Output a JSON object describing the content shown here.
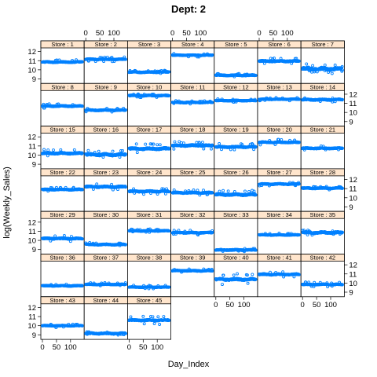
{
  "chart_data": {
    "type": "scatter",
    "title": "Dept: 2",
    "xlabel": "Day_Index",
    "ylabel": "log(Weekly_Sales)",
    "panel_label_prefix": "Store : ",
    "xlim": [
      0,
      143
    ],
    "ylim": [
      8.5,
      12.4
    ],
    "x_ticks": [
      0,
      50,
      100
    ],
    "y_ticks": [
      9,
      10,
      11,
      12
    ],
    "point_color": "#0080ff",
    "strip_color": "#ffe5cc",
    "layout": {
      "columns": 7,
      "rows": 7
    },
    "series": [
      {
        "store": 1,
        "label": "Store : 1",
        "level": 10.85,
        "amp": 0.08,
        "spike": 0.2
      },
      {
        "store": 2,
        "label": "Store : 2",
        "level": 11.15,
        "amp": 0.08,
        "spike": 0.2
      },
      {
        "store": 3,
        "label": "Store : 3",
        "level": 9.75,
        "amp": 0.08,
        "spike": 0.15
      },
      {
        "store": 4,
        "label": "Store : 4",
        "level": 11.6,
        "amp": 0.06,
        "spike": 0.15
      },
      {
        "store": 5,
        "label": "Store : 5",
        "level": 9.4,
        "amp": 0.08,
        "spike": 0.15
      },
      {
        "store": 6,
        "label": "Store : 6",
        "level": 10.95,
        "amp": 0.1,
        "spike": 0.3
      },
      {
        "store": 7,
        "label": "Store : 7",
        "level": 10.1,
        "amp": 0.25,
        "spike": 0.35
      },
      {
        "store": 8,
        "label": "Store : 8",
        "level": 10.7,
        "amp": 0.08,
        "spike": 0.2
      },
      {
        "store": 9,
        "label": "Store : 9",
        "level": 10.25,
        "amp": 0.08,
        "spike": 0.15
      },
      {
        "store": 10,
        "label": "Store : 10",
        "level": 11.85,
        "amp": 0.08,
        "spike": 0.15
      },
      {
        "store": 11,
        "label": "Store : 11",
        "level": 11.1,
        "amp": 0.08,
        "spike": 0.15
      },
      {
        "store": 12,
        "label": "Store : 12",
        "level": 11.3,
        "amp": 0.06,
        "spike": 0.15
      },
      {
        "store": 13,
        "label": "Store : 13",
        "level": 11.45,
        "amp": 0.06,
        "spike": 0.15
      },
      {
        "store": 14,
        "label": "Store : 14",
        "level": 11.4,
        "amp": 0.1,
        "spike": 0.2
      },
      {
        "store": 15,
        "label": "Store : 15",
        "level": 10.2,
        "amp": 0.12,
        "spike": 0.35
      },
      {
        "store": 16,
        "label": "Store : 16",
        "level": 10.05,
        "amp": 0.18,
        "spike": 0.35
      },
      {
        "store": 17,
        "label": "Store : 17",
        "level": 10.7,
        "amp": 0.15,
        "spike": 0.45
      },
      {
        "store": 18,
        "label": "Store : 18",
        "level": 11.05,
        "amp": 0.12,
        "spike": 0.35
      },
      {
        "store": 19,
        "label": "Store : 19",
        "level": 10.9,
        "amp": 0.1,
        "spike": 0.3
      },
      {
        "store": 20,
        "label": "Store : 20",
        "level": 11.4,
        "amp": 0.08,
        "spike": 0.25
      },
      {
        "store": 21,
        "label": "Store : 21",
        "level": 10.75,
        "amp": 0.08,
        "spike": 0.2
      },
      {
        "store": 22,
        "label": "Store : 22",
        "level": 10.9,
        "amp": 0.08,
        "spike": 0.2
      },
      {
        "store": 23,
        "label": "Store : 23",
        "level": 11.2,
        "amp": 0.12,
        "spike": 0.3
      },
      {
        "store": 24,
        "label": "Store : 24",
        "level": 10.7,
        "amp": 0.1,
        "spike": 0.25
      },
      {
        "store": 25,
        "label": "Store : 25",
        "level": 10.55,
        "amp": 0.1,
        "spike": 0.25
      },
      {
        "store": 26,
        "label": "Store : 26",
        "level": 10.35,
        "amp": 0.15,
        "spike": 0.35
      },
      {
        "store": 27,
        "label": "Store : 27",
        "level": 11.5,
        "amp": 0.08,
        "spike": 0.15
      },
      {
        "store": 28,
        "label": "Store : 28",
        "level": 11.05,
        "amp": 0.08,
        "spike": 0.15
      },
      {
        "store": 29,
        "label": "Store : 29",
        "level": 10.2,
        "amp": 0.1,
        "spike": 0.3
      },
      {
        "store": 30,
        "label": "Store : 30",
        "level": 9.55,
        "amp": 0.08,
        "spike": 0.15
      },
      {
        "store": 31,
        "label": "Store : 31",
        "level": 11.05,
        "amp": 0.06,
        "spike": 0.15
      },
      {
        "store": 32,
        "label": "Store : 32",
        "level": 10.85,
        "amp": 0.08,
        "spike": 0.2
      },
      {
        "store": 33,
        "label": "Store : 33",
        "level": 8.95,
        "amp": 0.08,
        "spike": 0.15
      },
      {
        "store": 34,
        "label": "Store : 34",
        "level": 10.6,
        "amp": 0.06,
        "spike": 0.15
      },
      {
        "store": 35,
        "label": "Store : 35",
        "level": 10.85,
        "amp": 0.15,
        "spike": 0.2
      },
      {
        "store": 36,
        "label": "Store : 36",
        "level": 9.7,
        "amp": 0.06,
        "spike": 0.15
      },
      {
        "store": 37,
        "label": "Store : 37",
        "level": 9.85,
        "amp": 0.06,
        "spike": 0.15
      },
      {
        "store": 38,
        "label": "Store : 38",
        "level": 9.55,
        "amp": 0.06,
        "spike": 0.15
      },
      {
        "store": 39,
        "label": "Store : 39",
        "level": 11.35,
        "amp": 0.08,
        "spike": 0.15
      },
      {
        "store": 40,
        "label": "Store : 40",
        "level": 10.4,
        "amp": 0.15,
        "spike": 0.5
      },
      {
        "store": 41,
        "label": "Store : 41",
        "level": 10.95,
        "amp": 0.1,
        "spike": 0.25
      },
      {
        "store": 42,
        "label": "Store : 42",
        "level": 9.85,
        "amp": 0.08,
        "spike": 0.2
      },
      {
        "store": 43,
        "label": "Store : 43",
        "level": 10.0,
        "amp": 0.06,
        "spike": 0.15
      },
      {
        "store": 44,
        "label": "Store : 44",
        "level": 9.15,
        "amp": 0.1,
        "spike": 0.15
      },
      {
        "store": 45,
        "label": "Store : 45",
        "level": 10.6,
        "amp": 0.1,
        "spike": 0.4
      }
    ]
  }
}
